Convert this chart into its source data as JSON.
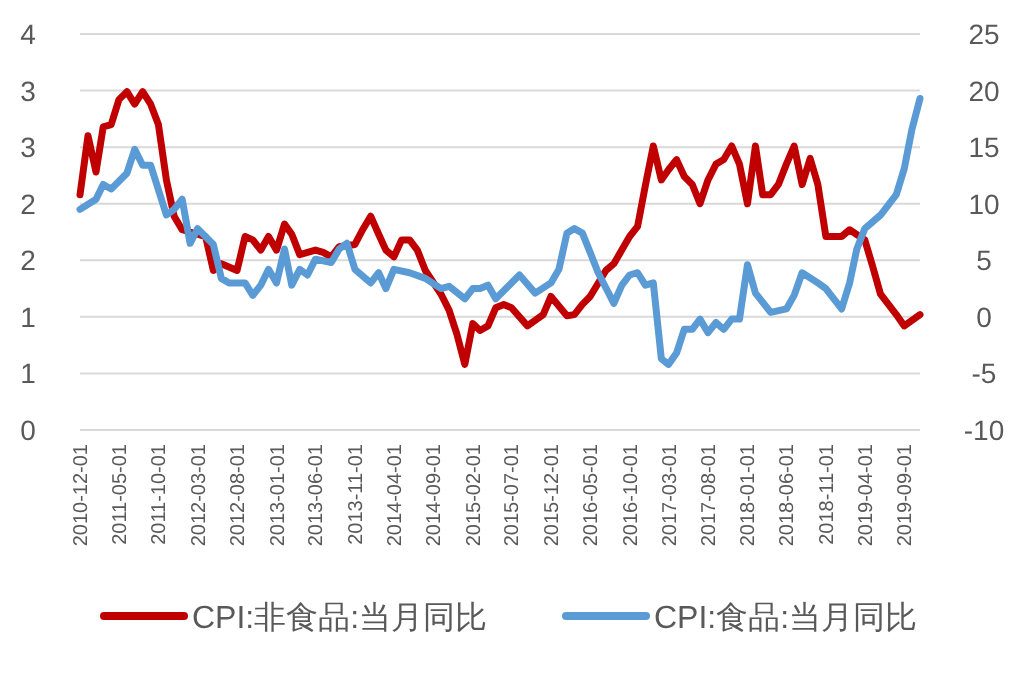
{
  "chart_data": {
    "type": "line",
    "grid": "y",
    "legend": "bottom",
    "xlim": [
      "2010-12-01",
      "2019-11-01"
    ],
    "xticks": [
      "2010-12-01",
      "2011-05-01",
      "2011-10-01",
      "2012-03-01",
      "2012-08-01",
      "2013-01-01",
      "2013-06-01",
      "2013-11-01",
      "2014-04-01",
      "2014-09-01",
      "2015-02-01",
      "2015-07-01",
      "2015-12-01",
      "2016-05-01",
      "2016-10-01",
      "2017-03-01",
      "2017-08-01",
      "2018-01-01",
      "2018-06-01",
      "2018-11-01",
      "2019-04-01",
      "2019-09-01"
    ],
    "ylim": [
      0,
      3.5
    ],
    "yticks": [
      {
        "value": 0,
        "label": "0"
      },
      {
        "value": 0.5,
        "label": "1"
      },
      {
        "value": 1,
        "label": "1"
      },
      {
        "value": 1.5,
        "label": "2"
      },
      {
        "value": 2,
        "label": "2"
      },
      {
        "value": 2.5,
        "label": "3"
      },
      {
        "value": 3,
        "label": "3"
      },
      {
        "value": 3.5,
        "label": "4"
      }
    ],
    "y2lim": [
      -10,
      25
    ],
    "y2ticks": [
      -10,
      -5,
      0,
      5,
      10,
      15,
      20,
      25
    ],
    "series": [
      {
        "name": "CPI:非食品:当月同比",
        "color": "#c00000",
        "axis": "y",
        "x": [
          "2010-12",
          "2011-01",
          "2011-02",
          "2011-03",
          "2011-04",
          "2011-05",
          "2011-06",
          "2011-07",
          "2011-08",
          "2011-09",
          "2011-10",
          "2011-11",
          "2011-12",
          "2012-01",
          "2012-03",
          "2012-04",
          "2012-05",
          "2012-06",
          "2012-08",
          "2012-09",
          "2012-10",
          "2012-11",
          "2012-12",
          "2013-01",
          "2013-02",
          "2013-03",
          "2013-04",
          "2013-06",
          "2013-07",
          "2013-08",
          "2013-09",
          "2013-11",
          "2013-12",
          "2014-01",
          "2014-02",
          "2014-03",
          "2014-04",
          "2014-05",
          "2014-06",
          "2014-07",
          "2014-08",
          "2014-10",
          "2014-11",
          "2014-12",
          "2015-01",
          "2015-02",
          "2015-03",
          "2015-04",
          "2015-05",
          "2015-06",
          "2015-07",
          "2015-09",
          "2015-11",
          "2015-12",
          "2016-02",
          "2016-03",
          "2016-04",
          "2016-05",
          "2016-07",
          "2016-08",
          "2016-10",
          "2016-11",
          "2016-12",
          "2017-01",
          "2017-02",
          "2017-03",
          "2017-04",
          "2017-05",
          "2017-06",
          "2017-07",
          "2017-08",
          "2017-09",
          "2017-10",
          "2017-11",
          "2017-12",
          "2018-01",
          "2018-02",
          "2018-03",
          "2018-04",
          "2018-05",
          "2018-06",
          "2018-07",
          "2018-08",
          "2018-09",
          "2018-10",
          "2018-11",
          "2019-01",
          "2019-02",
          "2019-04",
          "2019-05",
          "2019-06",
          "2019-08",
          "2019-09",
          "2019-11"
        ],
        "values": [
          2.08,
          2.6,
          2.28,
          2.68,
          2.7,
          2.92,
          2.99,
          2.88,
          2.99,
          2.88,
          2.7,
          2.21,
          1.89,
          1.77,
          1.73,
          1.71,
          1.41,
          1.47,
          1.41,
          1.71,
          1.68,
          1.59,
          1.71,
          1.59,
          1.82,
          1.73,
          1.55,
          1.59,
          1.57,
          1.53,
          1.62,
          1.64,
          1.77,
          1.89,
          1.73,
          1.59,
          1.53,
          1.68,
          1.68,
          1.59,
          1.41,
          1.2,
          1.06,
          0.85,
          0.58,
          0.94,
          0.88,
          0.92,
          1.08,
          1.11,
          1.08,
          0.92,
          1.02,
          1.18,
          1.01,
          1.02,
          1.11,
          1.18,
          1.41,
          1.47,
          1.71,
          1.8,
          2.16,
          2.51,
          2.21,
          2.3,
          2.39,
          2.24,
          2.17,
          2.0,
          2.21,
          2.35,
          2.39,
          2.51,
          2.35,
          2.0,
          2.51,
          2.08,
          2.08,
          2.17,
          2.35,
          2.51,
          2.17,
          2.4,
          2.17,
          1.71,
          1.71,
          1.77,
          1.68,
          1.45,
          1.2,
          1.02,
          0.92,
          1.02
        ]
      },
      {
        "name": "CPI:食品:当月同比",
        "color": "#5b9bd5",
        "axis": "y2",
        "x": [
          "2010-12",
          "2011-02",
          "2011-03",
          "2011-04",
          "2011-06",
          "2011-07",
          "2011-08",
          "2011-09",
          "2011-11",
          "2011-12",
          "2012-01",
          "2012-02",
          "2012-03",
          "2012-05",
          "2012-06",
          "2012-07",
          "2012-09",
          "2012-10",
          "2012-11",
          "2012-12",
          "2013-01",
          "2013-02",
          "2013-03",
          "2013-04",
          "2013-05",
          "2013-06",
          "2013-08",
          "2013-09",
          "2013-10",
          "2013-11",
          "2014-01",
          "2014-02",
          "2014-03",
          "2014-04",
          "2014-06",
          "2014-08",
          "2014-10",
          "2014-11",
          "2015-01",
          "2015-02",
          "2015-03",
          "2015-04",
          "2015-05",
          "2015-08",
          "2015-10",
          "2015-12",
          "2016-01",
          "2016-02",
          "2016-03",
          "2016-04",
          "2016-05",
          "2016-06",
          "2016-08",
          "2016-09",
          "2016-10",
          "2016-11",
          "2016-12",
          "2017-01",
          "2017-02",
          "2017-03",
          "2017-04",
          "2017-05",
          "2017-06",
          "2017-07",
          "2017-08",
          "2017-09",
          "2017-10",
          "2017-11",
          "2017-12",
          "2018-01",
          "2018-02",
          "2018-04",
          "2018-06",
          "2018-07",
          "2018-08",
          "2018-10",
          "2018-11",
          "2019-01",
          "2019-02",
          "2019-03",
          "2019-04",
          "2019-06",
          "2019-08",
          "2019-09",
          "2019-10",
          "2019-11"
        ],
        "values": [
          9.5,
          10.4,
          11.7,
          11.3,
          12.7,
          14.8,
          13.4,
          13.4,
          9.0,
          9.5,
          10.4,
          6.5,
          7.8,
          6.4,
          3.4,
          3.0,
          3.0,
          1.9,
          2.8,
          4.2,
          3.0,
          6.0,
          2.8,
          4.2,
          3.7,
          5.1,
          4.8,
          6.0,
          6.5,
          4.2,
          3.0,
          3.9,
          2.5,
          4.2,
          3.9,
          3.4,
          2.5,
          2.7,
          1.6,
          2.5,
          2.5,
          2.8,
          1.6,
          3.7,
          2.1,
          3.0,
          4.2,
          7.4,
          7.8,
          7.4,
          5.7,
          3.9,
          1.2,
          2.8,
          3.7,
          3.9,
          2.8,
          3.0,
          -3.7,
          -4.2,
          -3.2,
          -1.1,
          -1.1,
          -0.2,
          -1.4,
          -0.5,
          -1.1,
          -0.2,
          -0.2,
          4.6,
          2.1,
          0.4,
          0.7,
          1.9,
          3.9,
          3.0,
          2.5,
          0.7,
          3.0,
          6.0,
          7.8,
          9.0,
          10.8,
          13.1,
          16.6,
          19.3
        ]
      }
    ]
  }
}
